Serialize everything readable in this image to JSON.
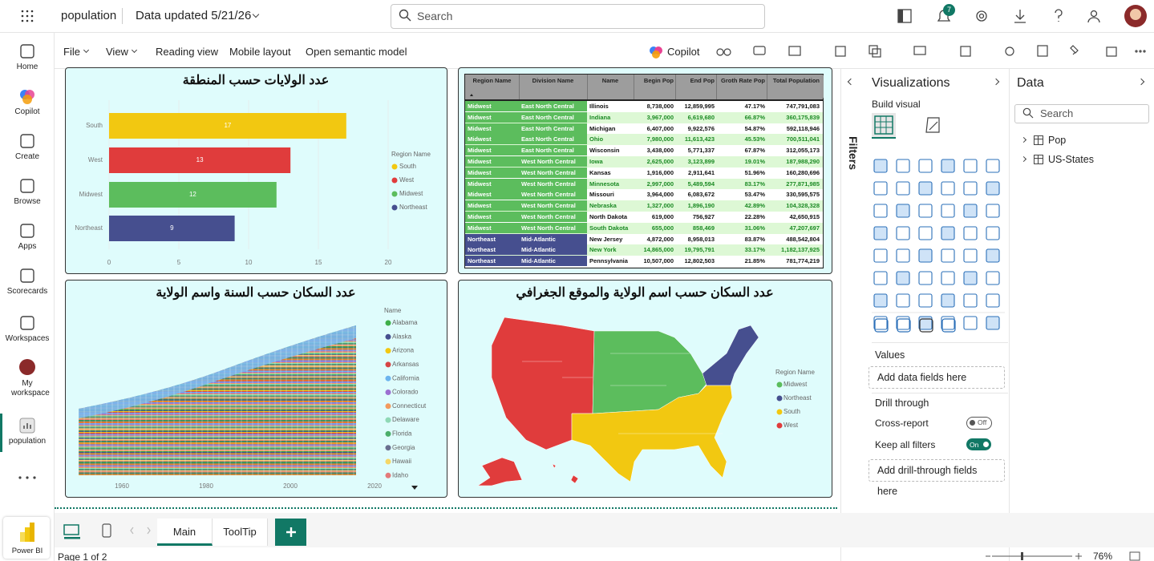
{
  "topbar": {
    "app": "population",
    "updated": "Data updated 5/21/26",
    "search": "Search",
    "notifications": "7"
  },
  "nav": [
    "Home",
    "Copilot",
    "Create",
    "Browse",
    "Apps",
    "Scorecards",
    "Workspaces",
    "My workspace",
    "population"
  ],
  "brand": "Power BI",
  "ribbon": [
    "File",
    "View",
    "Reading view",
    "Mobile layout",
    "Open semantic model"
  ],
  "copilot": "Copilot",
  "chart_data": [
    {
      "type": "bar",
      "orientation": "horizontal",
      "title": "عدد الولايات حسب المنطقة",
      "categories": [
        "South",
        "West",
        "Midwest",
        "Northeast"
      ],
      "values": [
        17,
        13,
        12,
        9
      ],
      "colors": [
        "#f2c811",
        "#e03c3c",
        "#5cbd5d",
        "#464f8f"
      ],
      "legend_title": "Region Name",
      "xlim": [
        0,
        20
      ],
      "xticks": [
        0,
        5,
        10,
        15,
        20
      ],
      "grid": true
    },
    {
      "type": "area",
      "stacked": true,
      "title": "عدد السكان حسب السنة واسم الولاية",
      "legend_title": "Name",
      "series": [
        {
          "name": "Alabama",
          "color": "#3fae49"
        },
        {
          "name": "Alaska",
          "color": "#464f8f"
        },
        {
          "name": "Arizona",
          "color": "#f2c811"
        },
        {
          "name": "Arkansas",
          "color": "#d64545"
        },
        {
          "name": "California",
          "color": "#6cb4ee"
        },
        {
          "name": "Colorado",
          "color": "#9b6fd1"
        },
        {
          "name": "Connecticut",
          "color": "#f29a5e"
        },
        {
          "name": "Delaware",
          "color": "#8fd9b6"
        },
        {
          "name": "Florida",
          "color": "#4cae6a"
        },
        {
          "name": "Georgia",
          "color": "#6a6f8f"
        },
        {
          "name": "Hawaii",
          "color": "#f5d766"
        },
        {
          "name": "Idaho",
          "color": "#e37a7a"
        }
      ],
      "xlim": [
        1950,
        2022
      ],
      "xticks": [
        1960,
        1980,
        2000,
        2020
      ]
    },
    {
      "type": "map",
      "title": "عدد السكان حسب اسم الولاية والموقع الجغرافي",
      "legend_title": "Region Name",
      "regions": [
        {
          "name": "Midwest",
          "color": "#5cbd5d"
        },
        {
          "name": "Northeast",
          "color": "#464f8f"
        },
        {
          "name": "South",
          "color": "#f2c811"
        },
        {
          "name": "West",
          "color": "#e03c3c"
        }
      ]
    }
  ],
  "table": {
    "columns": [
      "Region Name",
      "Division Name",
      "Name",
      "Begin Pop",
      "End Pop",
      "Groth Rate Pop",
      "Total Population"
    ],
    "rows": [
      [
        "Midwest",
        "East North Central",
        "Illinois",
        "8,738,000",
        "12,859,995",
        "47.17%",
        "747,791,083"
      ],
      [
        "Midwest",
        "East North Central",
        "Indiana",
        "3,967,000",
        "6,619,680",
        "66.87%",
        "360,175,839"
      ],
      [
        "Midwest",
        "East North Central",
        "Michigan",
        "6,407,000",
        "9,922,576",
        "54.87%",
        "592,118,946"
      ],
      [
        "Midwest",
        "East North Central",
        "Ohio",
        "7,980,000",
        "11,613,423",
        "45.53%",
        "700,511,041"
      ],
      [
        "Midwest",
        "East North Central",
        "Wisconsin",
        "3,438,000",
        "5,771,337",
        "67.87%",
        "312,055,173"
      ],
      [
        "Midwest",
        "West North Central",
        "Iowa",
        "2,625,000",
        "3,123,899",
        "19.01%",
        "187,988,290"
      ],
      [
        "Midwest",
        "West North Central",
        "Kansas",
        "1,916,000",
        "2,911,641",
        "51.96%",
        "160,280,696"
      ],
      [
        "Midwest",
        "West North Central",
        "Minnesota",
        "2,997,000",
        "5,489,594",
        "83.17%",
        "277,871,985"
      ],
      [
        "Midwest",
        "West North Central",
        "Missouri",
        "3,964,000",
        "6,083,672",
        "53.47%",
        "330,595,575"
      ],
      [
        "Midwest",
        "West North Central",
        "Nebraska",
        "1,327,000",
        "1,896,190",
        "42.89%",
        "104,328,328"
      ],
      [
        "Midwest",
        "West North Central",
        "North Dakota",
        "619,000",
        "756,927",
        "22.28%",
        "42,650,915"
      ],
      [
        "Midwest",
        "West North Central",
        "South Dakota",
        "655,000",
        "858,469",
        "31.06%",
        "47,207,697"
      ],
      [
        "Northeast",
        "Mid-Atlantic",
        "New Jersey",
        "4,872,000",
        "8,958,013",
        "83.87%",
        "488,542,804"
      ],
      [
        "Northeast",
        "Mid-Atlantic",
        "New York",
        "14,865,000",
        "19,795,791",
        "33.17%",
        "1,182,137,925"
      ],
      [
        "Northeast",
        "Mid-Atlantic",
        "Pennsylvania",
        "10,507,000",
        "12,802,503",
        "21.85%",
        "781,774,219"
      ]
    ]
  },
  "filters": "Filters",
  "viz": {
    "title": "Visualizations",
    "build": "Build visual",
    "values": "Values",
    "values_well": "Add data fields here",
    "drill": "Drill through",
    "cross": "Cross-report",
    "cross_state": "Off",
    "keep": "Keep all filters",
    "keep_state": "On",
    "drill_well": "Add drill-through fields here"
  },
  "data_pane": {
    "title": "Data",
    "search": "Search",
    "tables": [
      "Pop",
      "US-States"
    ]
  },
  "tabs": [
    "Main",
    "ToolTip"
  ],
  "status": {
    "page": "Page 1 of 2",
    "zoom": "76%"
  }
}
